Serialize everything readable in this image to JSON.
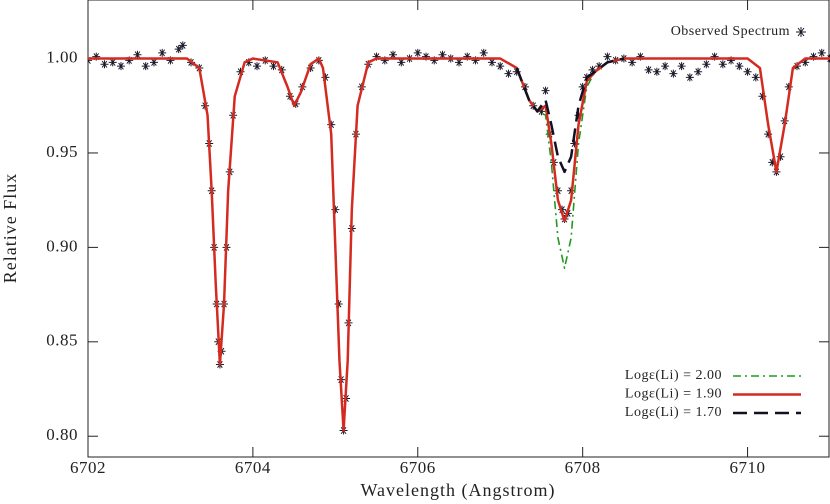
{
  "chart_data": {
    "type": "line",
    "xlabel": "Wavelength (Angstrom)",
    "ylabel": "Relative Flux",
    "xlim": [
      6702,
      6711
    ],
    "ylim": [
      0.789,
      1.031
    ],
    "xticks": [
      6702,
      6704,
      6706,
      6708,
      6710
    ],
    "yticks": [
      {
        "value": 1,
        "label": "1.00"
      },
      0.95,
      {
        "value": 0.9,
        "label": "0.90"
      },
      0.85,
      {
        "value": 0.8,
        "label": "0.80"
      }
    ],
    "legend": "lower right",
    "series": [
      {
        "name": "Observed Spectrum",
        "style": "scatter",
        "color": "#1a1a2a",
        "x": [
          6702.0,
          6702.1,
          6702.2,
          6702.3,
          6702.4,
          6702.5,
          6702.6,
          6702.7,
          6702.8,
          6702.9,
          6703.0,
          6703.1,
          6703.15,
          6703.25,
          6703.35,
          6703.42,
          6703.47,
          6703.5,
          6703.53,
          6703.56,
          6703.58,
          6703.6,
          6703.62,
          6703.65,
          6703.68,
          6703.72,
          6703.76,
          6703.85,
          6703.95,
          6704.05,
          6704.15,
          6704.25,
          6704.35,
          6704.45,
          6704.52,
          6704.6,
          6704.7,
          6704.8,
          6704.88,
          6704.95,
          6705.0,
          6705.04,
          6705.07,
          6705.1,
          6705.13,
          6705.16,
          6705.2,
          6705.25,
          6705.32,
          6705.4,
          6705.5,
          6705.6,
          6705.7,
          6705.8,
          6705.9,
          6706.0,
          6706.1,
          6706.2,
          6706.3,
          6706.4,
          6706.5,
          6706.6,
          6706.7,
          6706.8,
          6706.9,
          6707.0,
          6707.1,
          6707.2,
          6707.3,
          6707.4,
          6707.5,
          6707.55,
          6707.6,
          6707.65,
          6707.7,
          6707.75,
          6707.78,
          6707.82,
          6707.86,
          6707.9,
          6707.95,
          6708.0,
          6708.05,
          6708.12,
          6708.2,
          6708.3,
          6708.4,
          6708.5,
          6708.6,
          6708.7,
          6708.8,
          6708.9,
          6709.0,
          6709.1,
          6709.2,
          6709.3,
          6709.4,
          6709.5,
          6709.6,
          6709.7,
          6709.8,
          6709.9,
          6710.0,
          6710.1,
          6710.18,
          6710.25,
          6710.3,
          6710.35,
          6710.4,
          6710.45,
          6710.5,
          6710.6,
          6710.7,
          6710.8,
          6710.9,
          6711.0
        ],
        "values": [
          0.999,
          1.001,
          0.997,
          0.998,
          0.996,
          0.999,
          1.002,
          0.996,
          0.998,
          1.003,
          0.999,
          1.005,
          1.007,
          0.998,
          0.995,
          0.975,
          0.955,
          0.93,
          0.9,
          0.87,
          0.85,
          0.838,
          0.845,
          0.87,
          0.9,
          0.94,
          0.97,
          0.993,
          0.998,
          0.996,
          0.999,
          0.996,
          0.994,
          0.98,
          0.976,
          0.985,
          0.995,
          0.999,
          0.99,
          0.965,
          0.92,
          0.87,
          0.83,
          0.803,
          0.82,
          0.86,
          0.91,
          0.96,
          0.985,
          0.997,
          1.001,
          0.999,
          1.002,
          0.998,
          1.0,
          1.003,
          1.001,
          0.999,
          1.002,
          1.0,
          0.998,
          1.001,
          0.999,
          1.003,
          0.998,
          0.996,
          0.992,
          0.993,
          0.985,
          0.975,
          0.972,
          0.983,
          0.96,
          0.945,
          0.93,
          0.92,
          0.915,
          0.918,
          0.93,
          0.955,
          0.97,
          0.985,
          0.99,
          0.994,
          0.996,
          1.001,
          0.999,
          1.0,
          0.998,
          1.001,
          0.994,
          0.993,
          0.996,
          0.992,
          0.996,
          0.99,
          0.993,
          0.997,
          1.001,
          0.997,
          0.999,
          0.996,
          0.993,
          0.99,
          0.98,
          0.96,
          0.945,
          0.94,
          0.948,
          0.967,
          0.985,
          0.996,
          0.998,
          1.001,
          1.003,
          1.0
        ]
      },
      {
        "name": "Logε(Li) = 2.00",
        "style": "dash-dot",
        "color": "#1f9a1f",
        "x": [
          6707.2,
          6707.35,
          6707.45,
          6707.55,
          6707.62,
          6707.7,
          6707.78,
          6707.86,
          6707.95,
          6708.05,
          6708.15,
          6708.3,
          6708.5
        ],
        "values": [
          0.995,
          0.978,
          0.972,
          0.97,
          0.945,
          0.905,
          0.889,
          0.905,
          0.955,
          0.985,
          0.993,
          0.998,
          1.0
        ]
      },
      {
        "name": "Logε(Li) = 1.90",
        "style": "solid",
        "color": "#d42a20",
        "x": [
          6702.0,
          6703.2,
          6703.35,
          6703.45,
          6703.5,
          6703.55,
          6703.6,
          6703.65,
          6703.7,
          6703.78,
          6703.9,
          6704.0,
          6704.3,
          6704.42,
          6704.5,
          6704.58,
          6704.7,
          6704.8,
          6704.85,
          6704.95,
          6705.0,
          6705.05,
          6705.1,
          6705.15,
          6705.2,
          6705.27,
          6705.4,
          6705.5,
          6707.0,
          6707.2,
          6707.35,
          6707.45,
          6707.55,
          6707.62,
          6707.7,
          6707.78,
          6707.86,
          6707.95,
          6708.05,
          6708.15,
          6708.3,
          6708.5,
          6710.0,
          6710.15,
          6710.25,
          6710.35,
          6710.45,
          6710.55,
          6710.7,
          6711.0
        ],
        "values": [
          1.0,
          1.0,
          0.995,
          0.97,
          0.93,
          0.88,
          0.838,
          0.87,
          0.93,
          0.98,
          0.998,
          1.0,
          0.998,
          0.985,
          0.975,
          0.982,
          0.997,
          1.0,
          0.995,
          0.96,
          0.9,
          0.84,
          0.803,
          0.84,
          0.92,
          0.975,
          0.998,
          1.0,
          1.0,
          0.995,
          0.978,
          0.972,
          0.975,
          0.955,
          0.925,
          0.914,
          0.925,
          0.965,
          0.988,
          0.993,
          0.998,
          1.0,
          1.0,
          0.995,
          0.965,
          0.94,
          0.965,
          0.995,
          1.0,
          1.0
        ]
      },
      {
        "name": "Logε(Li) = 1.70",
        "style": "dash",
        "color": "#111122",
        "x": [
          6707.2,
          6707.35,
          6707.45,
          6707.55,
          6707.62,
          6707.7,
          6707.78,
          6707.86,
          6707.95,
          6708.05,
          6708.15,
          6708.3,
          6708.5
        ],
        "values": [
          0.995,
          0.978,
          0.972,
          0.978,
          0.965,
          0.948,
          0.94,
          0.948,
          0.975,
          0.99,
          0.993,
          0.998,
          1.0
        ]
      }
    ]
  }
}
